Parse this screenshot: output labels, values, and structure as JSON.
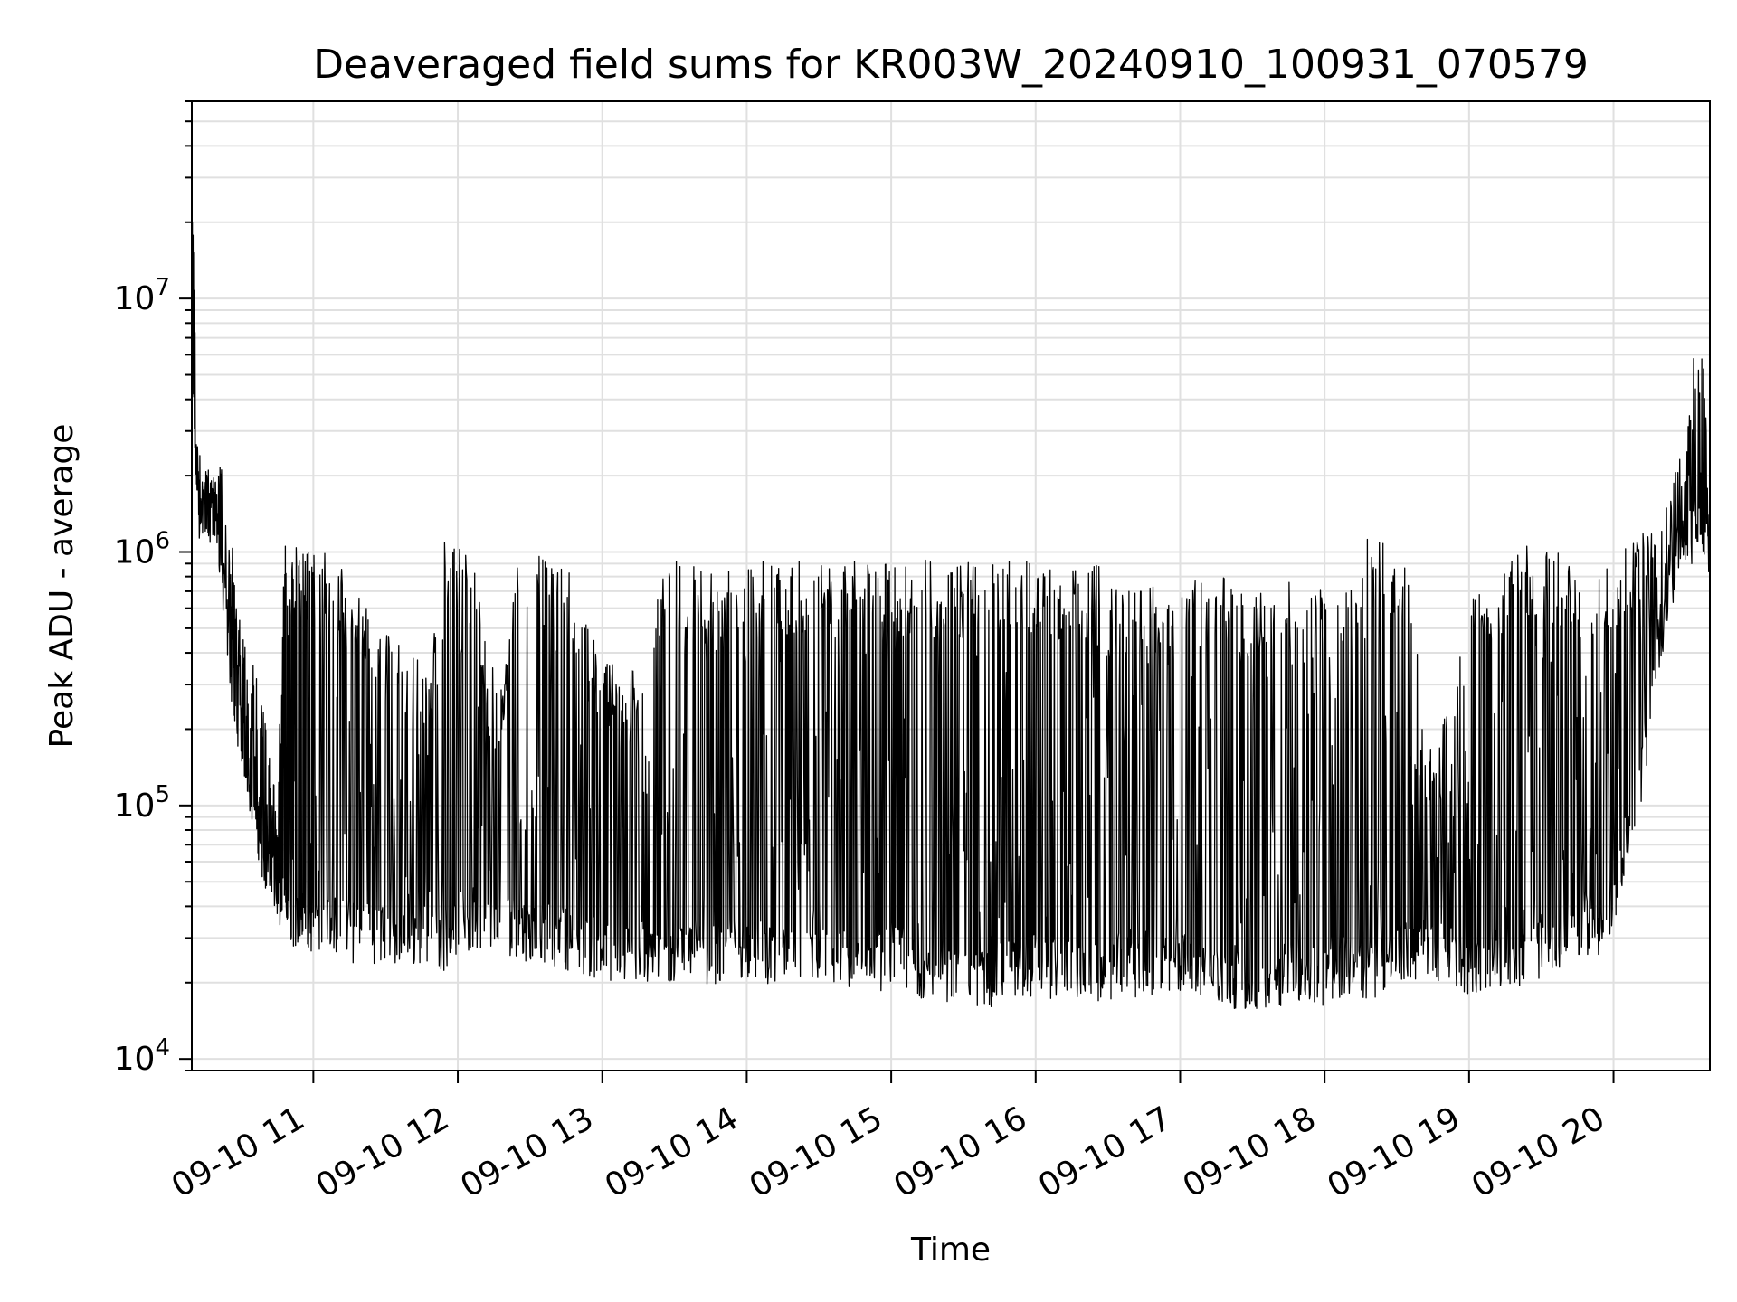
{
  "chart_data": {
    "type": "line",
    "title": "Deaveraged field sums for KR003W_20240910_100931_070579",
    "xlabel": "Time",
    "ylabel": "Peak ADU - average",
    "y_scale": "log",
    "ylim": [
      9000,
      60000000
    ],
    "xlim": [
      "2024-09-10T10:09:31",
      "2024-09-10T20:40:00"
    ],
    "grid": true,
    "line_color": "#000000",
    "grid_color": "#e0e0e0",
    "x_ticks": [
      {
        "value": "2024-09-10T11:00:00",
        "label": "09-10 11"
      },
      {
        "value": "2024-09-10T12:00:00",
        "label": "09-10 12"
      },
      {
        "value": "2024-09-10T13:00:00",
        "label": "09-10 13"
      },
      {
        "value": "2024-09-10T14:00:00",
        "label": "09-10 14"
      },
      {
        "value": "2024-09-10T15:00:00",
        "label": "09-10 15"
      },
      {
        "value": "2024-09-10T16:00:00",
        "label": "09-10 16"
      },
      {
        "value": "2024-09-10T17:00:00",
        "label": "09-10 17"
      },
      {
        "value": "2024-09-10T18:00:00",
        "label": "09-10 18"
      },
      {
        "value": "2024-09-10T19:00:00",
        "label": "09-10 19"
      },
      {
        "value": "2024-09-10T20:00:00",
        "label": "09-10 20"
      }
    ],
    "y_ticks": [
      {
        "value": 10000,
        "base": "10",
        "exponent": "4"
      },
      {
        "value": 100000,
        "base": "10",
        "exponent": "5"
      },
      {
        "value": 1000000,
        "base": "10",
        "exponent": "6"
      },
      {
        "value": 10000000,
        "base": "10",
        "exponent": "7"
      }
    ],
    "series": [
      {
        "x": [
          "2024-09-10T10:09:31",
          "2024-09-10T10:12:00",
          "2024-09-10T10:15:00",
          "2024-09-10T10:18:00",
          "2024-09-10T10:21:00",
          "2024-09-10T10:24:00",
          "2024-09-10T10:27:00",
          "2024-09-10T10:30:00",
          "2024-09-10T10:33:00",
          "2024-09-10T10:36:00",
          "2024-09-10T10:39:00",
          "2024-09-10T10:42:00",
          "2024-09-10T10:45:00",
          "2024-09-10T10:48:00",
          "2024-09-10T10:51:00",
          "2024-09-10T10:54:00",
          "2024-09-10T10:57:00",
          "2024-09-10T11:00:00",
          "2024-09-10T11:06:00",
          "2024-09-10T11:12:00",
          "2024-09-10T11:18:00",
          "2024-09-10T11:24:00",
          "2024-09-10T11:30:00",
          "2024-09-10T11:36:00",
          "2024-09-10T11:42:00",
          "2024-09-10T11:48:00",
          "2024-09-10T11:54:00",
          "2024-09-10T12:00:00",
          "2024-09-10T12:06:00",
          "2024-09-10T12:12:00",
          "2024-09-10T12:18:00",
          "2024-09-10T12:24:00",
          "2024-09-10T12:30:00",
          "2024-09-10T12:36:00",
          "2024-09-10T12:42:00",
          "2024-09-10T12:48:00",
          "2024-09-10T12:54:00",
          "2024-09-10T13:00:00",
          "2024-09-10T13:06:00",
          "2024-09-10T13:12:00",
          "2024-09-10T13:18:00",
          "2024-09-10T13:24:00",
          "2024-09-10T13:30:00",
          "2024-09-10T13:36:00",
          "2024-09-10T13:42:00",
          "2024-09-10T13:48:00",
          "2024-09-10T13:54:00",
          "2024-09-10T14:00:00",
          "2024-09-10T14:06:00",
          "2024-09-10T14:12:00",
          "2024-09-10T14:18:00",
          "2024-09-10T14:24:00",
          "2024-09-10T14:30:00",
          "2024-09-10T14:36:00",
          "2024-09-10T14:42:00",
          "2024-09-10T14:48:00",
          "2024-09-10T14:54:00",
          "2024-09-10T15:00:00",
          "2024-09-10T15:06:00",
          "2024-09-10T15:12:00",
          "2024-09-10T15:18:00",
          "2024-09-10T15:24:00",
          "2024-09-10T15:30:00",
          "2024-09-10T15:36:00",
          "2024-09-10T15:42:00",
          "2024-09-10T15:48:00",
          "2024-09-10T15:54:00",
          "2024-09-10T16:00:00",
          "2024-09-10T16:06:00",
          "2024-09-10T16:12:00",
          "2024-09-10T16:18:00",
          "2024-09-10T16:24:00",
          "2024-09-10T16:30:00",
          "2024-09-10T16:36:00",
          "2024-09-10T16:42:00",
          "2024-09-10T16:48:00",
          "2024-09-10T16:54:00",
          "2024-09-10T17:00:00",
          "2024-09-10T17:06:00",
          "2024-09-10T17:12:00",
          "2024-09-10T17:18:00",
          "2024-09-10T17:24:00",
          "2024-09-10T17:30:00",
          "2024-09-10T17:36:00",
          "2024-09-10T17:42:00",
          "2024-09-10T17:48:00",
          "2024-09-10T17:54:00",
          "2024-09-10T18:00:00",
          "2024-09-10T18:06:00",
          "2024-09-10T18:12:00",
          "2024-09-10T18:18:00",
          "2024-09-10T18:24:00",
          "2024-09-10T18:30:00",
          "2024-09-10T18:36:00",
          "2024-09-10T18:42:00",
          "2024-09-10T18:48:00",
          "2024-09-10T18:54:00",
          "2024-09-10T19:00:00",
          "2024-09-10T19:06:00",
          "2024-09-10T19:12:00",
          "2024-09-10T19:18:00",
          "2024-09-10T19:24:00",
          "2024-09-10T19:30:00",
          "2024-09-10T19:36:00",
          "2024-09-10T19:42:00",
          "2024-09-10T19:48:00",
          "2024-09-10T19:54:00",
          "2024-09-10T20:00:00",
          "2024-09-10T20:06:00",
          "2024-09-10T20:12:00",
          "2024-09-10T20:18:00",
          "2024-09-10T20:24:00",
          "2024-09-10T20:30:00",
          "2024-09-10T20:36:00",
          "2024-09-10T20:40:00"
        ],
        "y_high": [
          40000000,
          2500000,
          2200000,
          2000000,
          3000000,
          1200000,
          1100000,
          500000,
          400000,
          350000,
          250000,
          150000,
          100000,
          1100000,
          1100000,
          1050000,
          1000000,
          1000000,
          1000000,
          900000,
          700000,
          600000,
          500000,
          450000,
          400000,
          300000,
          1100000,
          1100000,
          1000000,
          400000,
          300000,
          900000,
          1000000,
          950000,
          900000,
          800000,
          500000,
          400000,
          450000,
          350000,
          300000,
          900000,
          950000,
          900000,
          850000,
          800000,
          900000,
          950000,
          950000,
          900000,
          950000,
          900000,
          950000,
          900000,
          950000,
          900000,
          950000,
          1000000,
          900000,
          950000,
          900000,
          850000,
          900000,
          950000,
          900000,
          950000,
          900000,
          950000,
          900000,
          900000,
          850000,
          950000,
          800000,
          800000,
          700000,
          750000,
          700000,
          750000,
          800000,
          700000,
          850000,
          800000,
          750000,
          700000,
          850000,
          700000,
          750000,
          800000,
          750000,
          700000,
          1200000,
          1100000,
          1000000,
          800000,
          200000,
          200000,
          300000,
          800000,
          900000,
          900000,
          1000000,
          1100000,
          1050000,
          1000000,
          950000,
          900000,
          900000,
          1000000,
          1100000,
          1200000,
          1500000,
          2000000,
          3000000,
          11500000,
          1500000
        ],
        "y_low": [
          4000000,
          1100000,
          1200000,
          1300000,
          800000,
          400000,
          200000,
          150000,
          100000,
          70000,
          50000,
          40000,
          35000,
          30000,
          28000,
          26000,
          27000,
          26000,
          27000,
          25000,
          23000,
          24000,
          23000,
          22000,
          23000,
          24000,
          22000,
          26000,
          25000,
          24000,
          26000,
          25000,
          24000,
          23000,
          23000,
          22000,
          21000,
          20000,
          19000,
          20000,
          18000,
          20000,
          19000,
          21000,
          20000,
          19000,
          20000,
          21000,
          20000,
          19000,
          18000,
          19000,
          20000,
          19000,
          18000,
          17000,
          18000,
          19000,
          18000,
          17000,
          17000,
          16000,
          17000,
          15000,
          16000,
          17000,
          16000,
          18000,
          17000,
          18000,
          17000,
          16000,
          17000,
          18000,
          17000,
          16000,
          17000,
          18000,
          17000,
          16000,
          15000,
          16000,
          15000,
          14000,
          16000,
          17000,
          16000,
          15000,
          17000,
          18000,
          17000,
          18000,
          19000,
          20000,
          21000,
          20000,
          19000,
          18000,
          17000,
          19000,
          20000,
          18000,
          21000,
          22000,
          24000,
          26000,
          25000,
          30000,
          60000,
          100000,
          300000,
          600000,
          900000,
          900000,
          800000
        ]
      }
    ]
  }
}
